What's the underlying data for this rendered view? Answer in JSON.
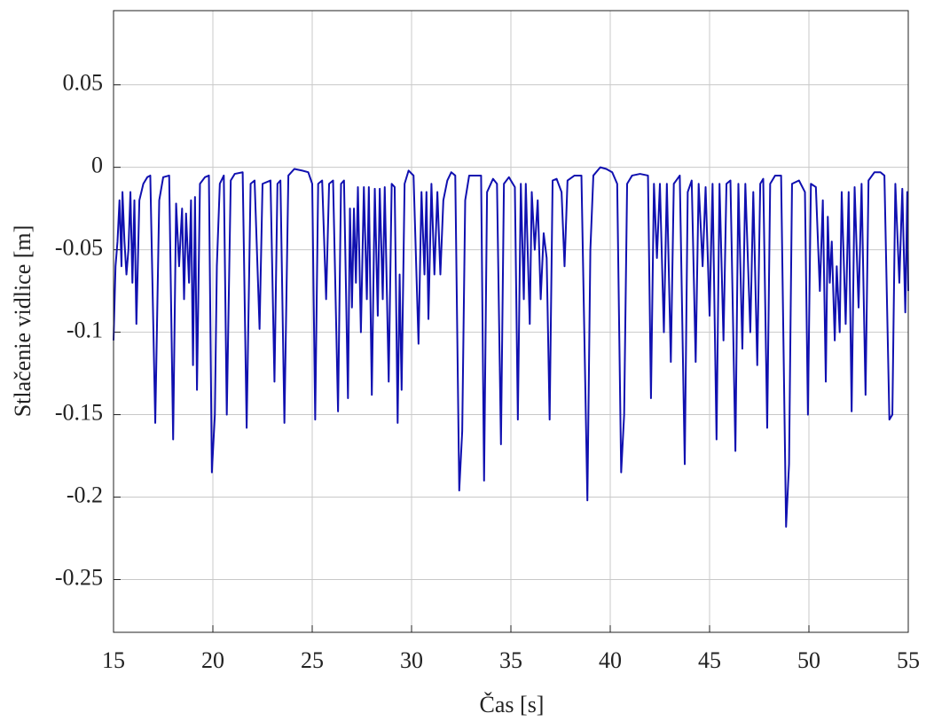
{
  "chart_data": {
    "type": "line",
    "xlabel": "Čas [s]",
    "ylabel": "Stlačenie vidlice [m]",
    "color": "#1010b0",
    "grid": true,
    "xlim": [
      15,
      55
    ],
    "xticks": [
      15,
      20,
      25,
      30,
      35,
      40,
      45,
      50,
      55
    ],
    "ylim": [
      -0.282,
      0.095
    ],
    "yticks": [
      -0.25,
      -0.2,
      -0.15,
      -0.1,
      -0.05,
      0,
      0.05
    ],
    "x": [
      15.0,
      15.1,
      15.2,
      15.3,
      15.4,
      15.45,
      15.55,
      15.65,
      15.75,
      15.85,
      15.95,
      16.05,
      16.15,
      16.3,
      16.5,
      16.7,
      16.85,
      17.1,
      17.3,
      17.5,
      17.8,
      18.0,
      18.15,
      18.3,
      18.45,
      18.55,
      18.65,
      18.8,
      18.9,
      19.0,
      19.1,
      19.2,
      19.35,
      19.6,
      19.8,
      19.95,
      20.1,
      20.2,
      20.35,
      20.55,
      20.7,
      20.9,
      21.1,
      21.5,
      21.7,
      21.9,
      22.1,
      22.35,
      22.5,
      22.9,
      23.1,
      23.25,
      23.4,
      23.6,
      23.8,
      24.1,
      24.5,
      24.8,
      25.0,
      25.15,
      25.3,
      25.5,
      25.7,
      25.85,
      26.05,
      26.3,
      26.45,
      26.6,
      26.8,
      26.9,
      27.0,
      27.1,
      27.2,
      27.3,
      27.45,
      27.6,
      27.75,
      27.85,
      28.0,
      28.15,
      28.3,
      28.4,
      28.55,
      28.65,
      28.85,
      29.0,
      29.15,
      29.3,
      29.4,
      29.5,
      29.65,
      29.85,
      30.1,
      30.35,
      30.5,
      30.65,
      30.75,
      30.85,
      31.0,
      31.15,
      31.3,
      31.45,
      31.6,
      31.8,
      32.0,
      32.2,
      32.4,
      32.55,
      32.7,
      32.9,
      33.2,
      33.5,
      33.65,
      33.8,
      34.1,
      34.3,
      34.5,
      34.65,
      34.9,
      35.2,
      35.35,
      35.5,
      35.65,
      35.75,
      35.95,
      36.05,
      36.2,
      36.35,
      36.5,
      36.65,
      36.8,
      36.95,
      37.1,
      37.3,
      37.55,
      37.7,
      37.85,
      38.2,
      38.55,
      38.85,
      39.0,
      39.15,
      39.5,
      39.8,
      40.1,
      40.35,
      40.55,
      40.7,
      40.85,
      41.1,
      41.5,
      41.9,
      42.05,
      42.2,
      42.35,
      42.5,
      42.7,
      42.85,
      43.05,
      43.2,
      43.5,
      43.75,
      43.9,
      44.1,
      44.3,
      44.45,
      44.65,
      44.8,
      45.0,
      45.15,
      45.35,
      45.5,
      45.7,
      45.85,
      46.05,
      46.3,
      46.45,
      46.65,
      46.8,
      47.05,
      47.2,
      47.4,
      47.55,
      47.7,
      47.9,
      48.05,
      48.3,
      48.6,
      48.85,
      49.0,
      49.15,
      49.5,
      49.8,
      49.95,
      50.1,
      50.35,
      50.55,
      50.7,
      50.85,
      50.95,
      51.05,
      51.15,
      51.3,
      51.4,
      51.55,
      51.65,
      51.85,
      52.0,
      52.15,
      52.3,
      52.5,
      52.65,
      52.85,
      53.0,
      53.3,
      53.6,
      53.8,
      54.05,
      54.2,
      54.35,
      54.55,
      54.7,
      54.85,
      54.95,
      55.0
    ],
    "values": [
      -0.105,
      -0.06,
      -0.045,
      -0.02,
      -0.06,
      -0.015,
      -0.045,
      -0.065,
      -0.05,
      -0.015,
      -0.07,
      -0.02,
      -0.095,
      -0.02,
      -0.01,
      -0.006,
      -0.005,
      -0.155,
      -0.02,
      -0.006,
      -0.005,
      -0.165,
      -0.022,
      -0.06,
      -0.025,
      -0.08,
      -0.028,
      -0.07,
      -0.02,
      -0.12,
      -0.018,
      -0.135,
      -0.01,
      -0.006,
      -0.005,
      -0.185,
      -0.15,
      -0.06,
      -0.01,
      -0.005,
      -0.15,
      -0.008,
      -0.004,
      -0.003,
      -0.158,
      -0.01,
      -0.008,
      -0.098,
      -0.01,
      -0.008,
      -0.13,
      -0.01,
      -0.008,
      -0.155,
      -0.005,
      -0.001,
      -0.002,
      -0.003,
      -0.01,
      -0.153,
      -0.01,
      -0.008,
      -0.08,
      -0.01,
      -0.008,
      -0.148,
      -0.01,
      -0.008,
      -0.14,
      -0.025,
      -0.085,
      -0.025,
      -0.07,
      -0.012,
      -0.1,
      -0.012,
      -0.08,
      -0.012,
      -0.138,
      -0.013,
      -0.09,
      -0.013,
      -0.08,
      -0.012,
      -0.13,
      -0.01,
      -0.012,
      -0.155,
      -0.065,
      -0.135,
      -0.01,
      -0.002,
      -0.005,
      -0.107,
      -0.015,
      -0.065,
      -0.015,
      -0.092,
      -0.01,
      -0.065,
      -0.015,
      -0.065,
      -0.02,
      -0.008,
      -0.003,
      -0.005,
      -0.196,
      -0.16,
      -0.02,
      -0.005,
      -0.005,
      -0.005,
      -0.19,
      -0.015,
      -0.007,
      -0.01,
      -0.168,
      -0.01,
      -0.006,
      -0.012,
      -0.153,
      -0.01,
      -0.08,
      -0.01,
      -0.095,
      -0.015,
      -0.05,
      -0.02,
      -0.08,
      -0.04,
      -0.055,
      -0.153,
      -0.008,
      -0.007,
      -0.015,
      -0.06,
      -0.008,
      -0.005,
      -0.005,
      -0.202,
      -0.05,
      -0.005,
      0.0,
      -0.001,
      -0.003,
      -0.01,
      -0.185,
      -0.15,
      -0.01,
      -0.005,
      -0.004,
      -0.005,
      -0.14,
      -0.01,
      -0.055,
      -0.01,
      -0.1,
      -0.01,
      -0.118,
      -0.01,
      -0.005,
      -0.18,
      -0.015,
      -0.008,
      -0.118,
      -0.01,
      -0.06,
      -0.012,
      -0.09,
      -0.01,
      -0.165,
      -0.01,
      -0.105,
      -0.01,
      -0.008,
      -0.172,
      -0.01,
      -0.11,
      -0.01,
      -0.1,
      -0.015,
      -0.12,
      -0.01,
      -0.007,
      -0.158,
      -0.01,
      -0.005,
      -0.005,
      -0.218,
      -0.18,
      -0.01,
      -0.008,
      -0.015,
      -0.15,
      -0.01,
      -0.012,
      -0.075,
      -0.02,
      -0.13,
      -0.03,
      -0.07,
      -0.045,
      -0.105,
      -0.06,
      -0.1,
      -0.015,
      -0.095,
      -0.015,
      -0.148,
      -0.012,
      -0.085,
      -0.01,
      -0.138,
      -0.008,
      -0.003,
      -0.003,
      -0.005,
      -0.153,
      -0.15,
      -0.01,
      -0.07,
      -0.013,
      -0.088,
      -0.015,
      -0.075
    ]
  }
}
